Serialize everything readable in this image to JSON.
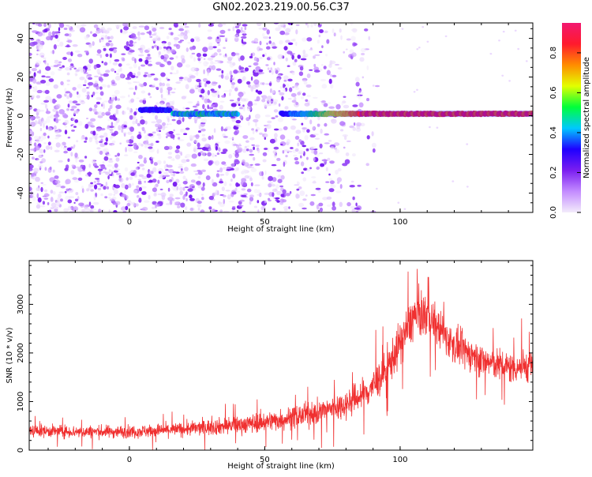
{
  "figure": {
    "title": "GN02.2023.219.00.56.C37"
  },
  "chart_data": [
    {
      "type": "heatmap",
      "title": "GN02.2023.219.00.56.C37",
      "xlabel": "Height of straight line (km)",
      "ylabel": "Frequency (Hz)",
      "xlim": [
        -37,
        149
      ],
      "ylim": [
        -50,
        48
      ],
      "x_ticks": [
        0,
        50,
        100
      ],
      "y_ticks": [
        -40,
        -20,
        0,
        20,
        40
      ],
      "colorbar": {
        "label": "Normalized spectral amplitude",
        "range": [
          0,
          0.95
        ],
        "ticks": [
          0.0,
          0.2,
          0.4,
          0.6,
          0.8
        ],
        "colormap": [
          "#f3ecfb",
          "#c38bff",
          "#7b1ef0",
          "#1f00ff",
          "#00c8ff",
          "#00ff3a",
          "#e3ff00",
          "#ff8c00",
          "#ff1a2d",
          "#f21870"
        ]
      },
      "signal_band": {
        "frequency_hz": 1,
        "segments": [
          {
            "x_start": 4,
            "x_end": 15,
            "frequency_hz": 3,
            "amplitude": 0.3
          },
          {
            "x_start": 16,
            "x_end": 40,
            "frequency_hz": 1,
            "amplitude": 0.45
          },
          {
            "x_start": 56,
            "x_end": 85,
            "frequency_hz": 1,
            "amplitude": 0.55
          },
          {
            "x_start": 85,
            "x_end": 149,
            "frequency_hz": 1,
            "amplitude": 0.85
          }
        ]
      },
      "noise_extent_x": [
        -37,
        87
      ],
      "grid": false,
      "legend": "none"
    },
    {
      "type": "line",
      "xlabel": "Height of straight line (km)",
      "ylabel": "SNR (10 * v/v)",
      "xlim": [
        -37,
        149
      ],
      "ylim": [
        0,
        3900
      ],
      "x_ticks": [
        0,
        50,
        100
      ],
      "y_ticks": [
        0,
        1000,
        2000,
        3000
      ],
      "series_color": "#f03030",
      "envelope": {
        "x": [
          -37,
          -20,
          0,
          20,
          40,
          55,
          70,
          80,
          88,
          95,
          100,
          105,
          110,
          115,
          120,
          130,
          140,
          149
        ],
        "center": [
          400,
          380,
          380,
          430,
          520,
          620,
          780,
          950,
          1200,
          1650,
          2200,
          2750,
          2800,
          2450,
          2150,
          1850,
          1700,
          1750
        ],
        "spread": [
          230,
          230,
          230,
          260,
          330,
          380,
          450,
          520,
          600,
          700,
          800,
          850,
          800,
          700,
          650,
          600,
          600,
          600
        ]
      },
      "grid": false,
      "legend": "none"
    }
  ]
}
